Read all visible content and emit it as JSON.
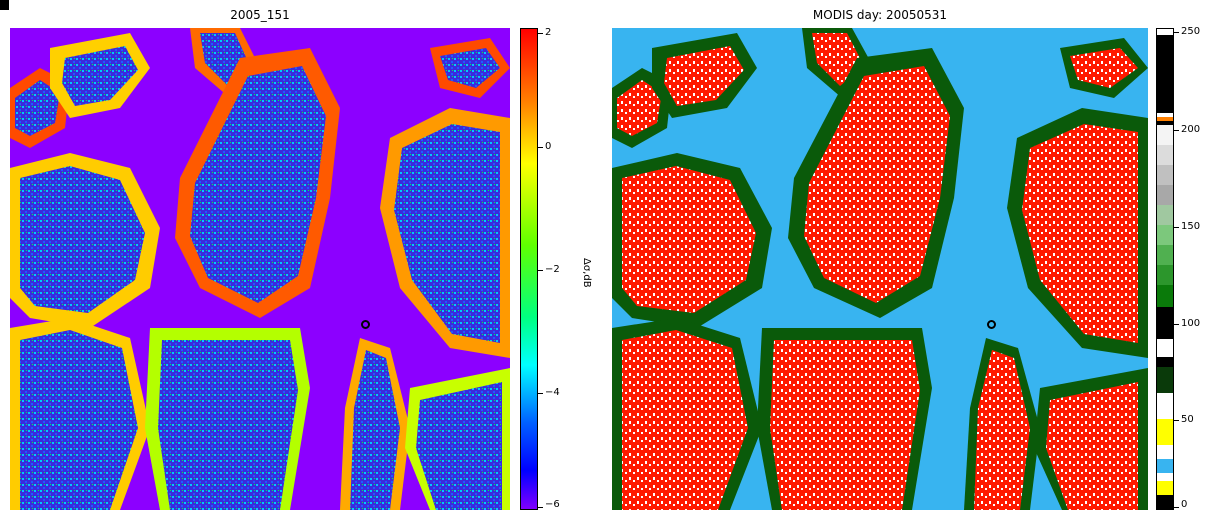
{
  "left_panel": {
    "title": "2005_151",
    "colorbar": {
      "label": "Δσ,dB",
      "ticks": [
        "2",
        "0",
        "−2",
        "−4",
        "−6"
      ],
      "gradient": [
        "#ff0000",
        "#ff7f00",
        "#ffff00",
        "#80ff00",
        "#00ff00",
        "#00ffff",
        "#0080ff",
        "#0000ff",
        "#8000ff"
      ]
    },
    "colors": {
      "water": "#8c00ff",
      "land_low": "#3a2bdb",
      "land_mid": "#00c8ff",
      "land_high": "#ffd000",
      "edge": "#ff3a00"
    },
    "marker": "site-marker"
  },
  "right_panel": {
    "title": "MODIS day: 20050531",
    "colorbar": {
      "ticks": [
        "250",
        "200",
        "150",
        "100",
        "50",
        "0"
      ]
    },
    "colors": {
      "water": "#38b4f0",
      "snow": "#ff1a00",
      "veg": "#0a5a0a",
      "cloud": "#ffffff",
      "gray": "#b8b8b8"
    },
    "marker": "site-marker"
  }
}
